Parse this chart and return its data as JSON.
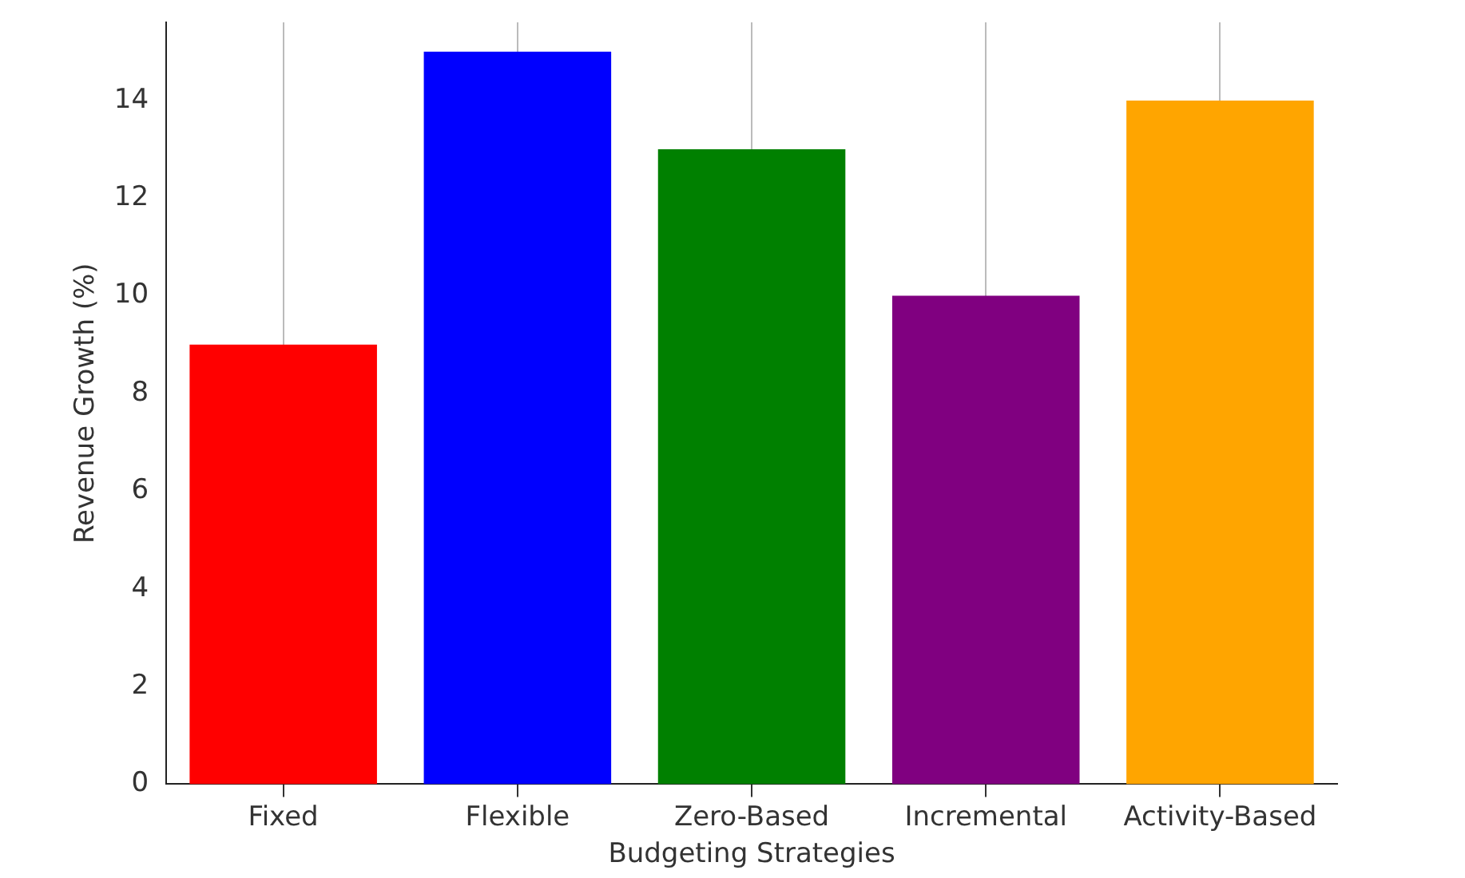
{
  "chart_data": {
    "type": "bar",
    "xlabel": "Budgeting Strategies",
    "ylabel": "Revenue Growth (%)",
    "categories": [
      "Fixed",
      "Flexible",
      "Zero-Based",
      "Incremental",
      "Activity-Based"
    ],
    "values": [
      9,
      15,
      13,
      10,
      14
    ],
    "colors": [
      "#ff0000",
      "#0000ff",
      "#008000",
      "#800080",
      "#ffa500"
    ],
    "ylim": [
      0,
      15.6
    ],
    "yticks": [
      0,
      2,
      4,
      6,
      8,
      10,
      12,
      14
    ],
    "grid": "x",
    "legend": false
  }
}
